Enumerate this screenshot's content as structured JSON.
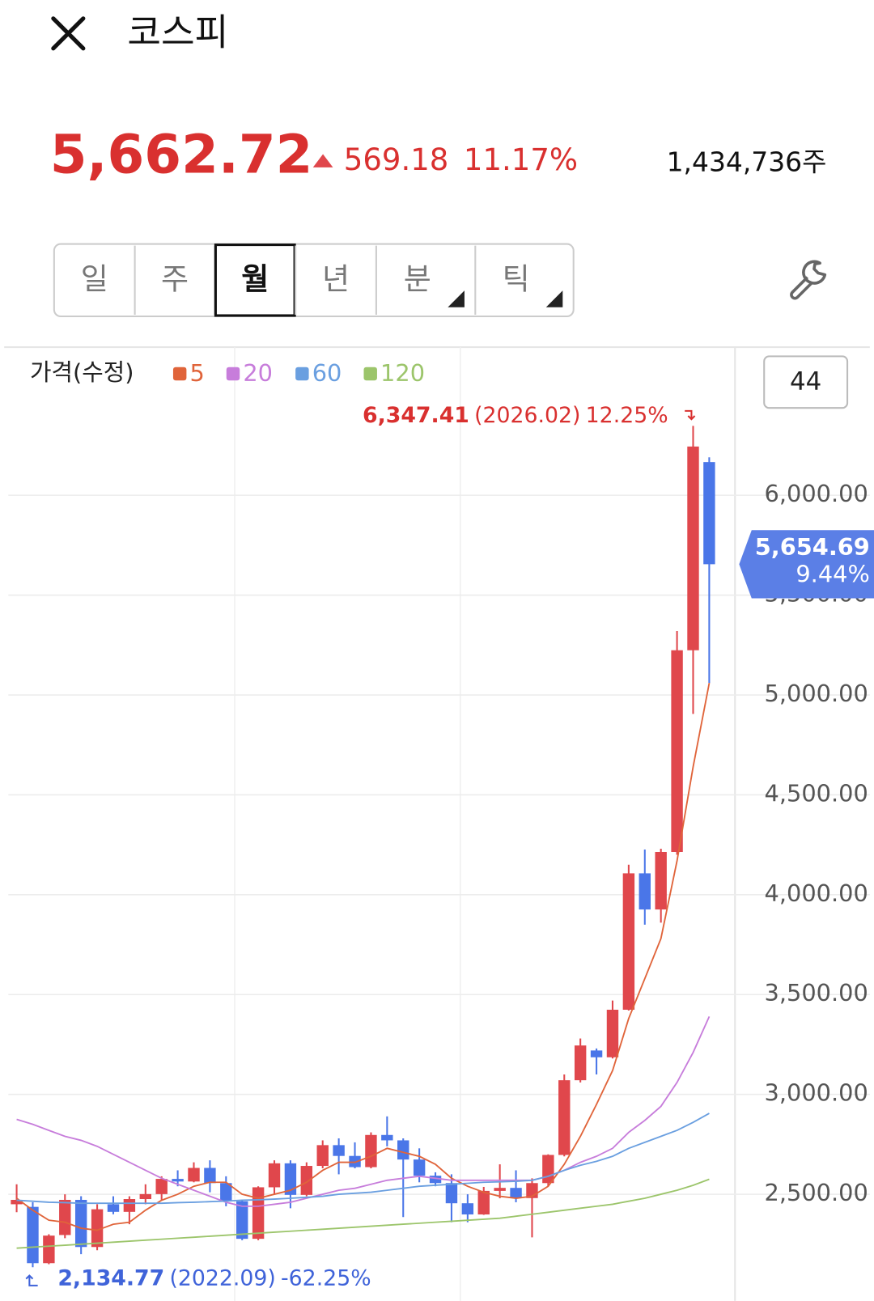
{
  "header": {
    "title": "코스피",
    "price": "5,662.72",
    "change": "569.18",
    "change_pct": "11.17%",
    "volume": "1,434,736주"
  },
  "tabs": [
    "일",
    "주",
    "월",
    "년",
    "분",
    "틱"
  ],
  "selected_tab": 2,
  "count": "44",
  "chart_data": {
    "type": "candlestick",
    "legend_title": "가격(수정)",
    "open": [
      2450,
      2437,
      2155,
      2296,
      2472,
      2236,
      2450,
      2412,
      2476,
      2501,
      2577,
      2564,
      2632,
      2556,
      2465,
      2277,
      2535,
      2655,
      2497,
      2642,
      2746,
      2692,
      2636,
      2797,
      2770,
      2674,
      2593,
      2556,
      2455,
      2399,
      2517,
      2532,
      2481,
      2556,
      2697,
      3071,
      3220,
      3186,
      3424,
      4107,
      3926,
      4214,
      5224,
      6166
    ],
    "high": [
      2550,
      2460,
      2300,
      2500,
      2490,
      2450,
      2490,
      2490,
      2550,
      2590,
      2620,
      2660,
      2670,
      2590,
      2470,
      2540,
      2670,
      2670,
      2660,
      2770,
      2780,
      2760,
      2810,
      2890,
      2780,
      2730,
      2610,
      2600,
      2500,
      2537,
      2650,
      2620,
      2580,
      2700,
      3100,
      3280,
      3230,
      3470,
      4150,
      4226,
      4230,
      5320,
      6347.41,
      6190
    ],
    "low": [
      2410,
      2134.77,
      2150,
      2280,
      2200,
      2220,
      2400,
      2350,
      2450,
      2470,
      2540,
      2560,
      2510,
      2440,
      2270,
      2270,
      2500,
      2430,
      2490,
      2630,
      2600,
      2630,
      2630,
      2740,
      2386,
      2560,
      2540,
      2360,
      2360,
      2397,
      2480,
      2460,
      2284,
      2540,
      2690,
      3060,
      3100,
      3180,
      3420,
      3850,
      3860,
      4200,
      4905,
      5060
    ],
    "close": [
      2472,
      2155,
      2293,
      2472,
      2236,
      2425,
      2412,
      2476,
      2501,
      2577,
      2564,
      2632,
      2556,
      2465,
      2277,
      2535,
      2655,
      2497,
      2642,
      2746,
      2692,
      2636,
      2797,
      2770,
      2674,
      2593,
      2556,
      2455,
      2399,
      2517,
      2532,
      2481,
      2556,
      2697,
      3071,
      3245,
      3186,
      3424,
      4107,
      3926,
      4214,
      5224,
      6244,
      5654.69
    ],
    "up_color": "#e0474c",
    "down_color": "#4a76e8",
    "series": [
      {
        "name": "5",
        "color": "#e0643a",
        "values": [
          2480,
          2420,
          2370,
          2360,
          2330,
          2320,
          2350,
          2360,
          2420,
          2470,
          2500,
          2540,
          2560,
          2560,
          2500,
          2480,
          2500,
          2520,
          2560,
          2620,
          2660,
          2660,
          2690,
          2730,
          2710,
          2690,
          2650,
          2580,
          2540,
          2510,
          2490,
          2480,
          2490,
          2540,
          2650,
          2790,
          2950,
          3120,
          3380,
          3580,
          3780,
          4170,
          4640,
          5060
        ]
      },
      {
        "name": "20",
        "color": "#c77ddb",
        "values": [
          2875,
          2850,
          2820,
          2790,
          2770,
          2740,
          2700,
          2660,
          2620,
          2580,
          2550,
          2520,
          2490,
          2460,
          2440,
          2440,
          2450,
          2460,
          2480,
          2500,
          2520,
          2530,
          2550,
          2570,
          2580,
          2590,
          2580,
          2570,
          2570,
          2570,
          2570,
          2570,
          2570,
          2590,
          2620,
          2660,
          2690,
          2730,
          2810,
          2870,
          2940,
          3060,
          3210,
          3390
        ]
      },
      {
        "name": "60",
        "color": "#6a9fe0",
        "values": [
          2470,
          2465,
          2460,
          2458,
          2455,
          2455,
          2455,
          2455,
          2455,
          2455,
          2458,
          2460,
          2463,
          2466,
          2470,
          2472,
          2476,
          2480,
          2485,
          2490,
          2500,
          2505,
          2510,
          2520,
          2530,
          2540,
          2545,
          2550,
          2555,
          2560,
          2562,
          2565,
          2570,
          2590,
          2620,
          2645,
          2665,
          2690,
          2730,
          2760,
          2790,
          2820,
          2860,
          2905
        ]
      },
      {
        "name": "120",
        "color": "#9cc56b",
        "values": [
          2230,
          2235,
          2240,
          2245,
          2250,
          2255,
          2260,
          2265,
          2270,
          2275,
          2280,
          2285,
          2290,
          2295,
          2300,
          2305,
          2310,
          2315,
          2320,
          2325,
          2330,
          2335,
          2340,
          2345,
          2350,
          2355,
          2360,
          2365,
          2370,
          2375,
          2380,
          2390,
          2400,
          2410,
          2420,
          2430,
          2440,
          2450,
          2465,
          2480,
          2500,
          2520,
          2545,
          2575
        ]
      }
    ],
    "ylim": [
      1958,
      6729
    ],
    "yticks": [
      {
        "value": 2500,
        "label": "2,500.00"
      },
      {
        "value": 3000,
        "label": "3,000.00"
      },
      {
        "value": 3500,
        "label": "3,500.00"
      },
      {
        "value": 4000,
        "label": "4,000.00"
      },
      {
        "value": 4500,
        "label": "4,500.00"
      },
      {
        "value": 5000,
        "label": "5,000.00"
      },
      {
        "value": 5500,
        "label": "5,500.00"
      },
      {
        "value": 6000,
        "label": "6,000.00"
      }
    ],
    "grid": true,
    "high_annotation": {
      "label": "6,347.41",
      "date": "(2026.02)",
      "change": "12.25%"
    },
    "low_annotation": {
      "label": "2,134.77",
      "date": "(2022.09)",
      "change": "-62.25%"
    },
    "last_tag": {
      "label": "5,654.69",
      "change": "9.44%"
    }
  }
}
